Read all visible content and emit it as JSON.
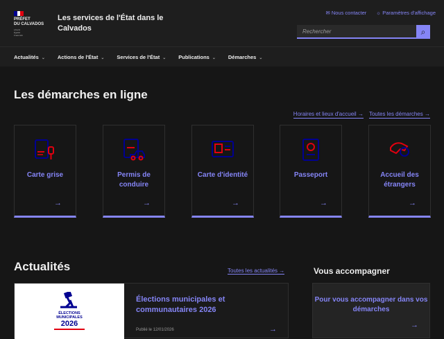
{
  "header": {
    "logo_lines": [
      "PRÉFET",
      "DU CALVADOS"
    ],
    "motto": [
      "Liberté",
      "Égalité",
      "Fraternité"
    ],
    "site_title": "Les services de l'État dans le Calvados",
    "contact": "Nous contacter",
    "display": "Paramètres d'affichage",
    "search_placeholder": "Rechercher"
  },
  "nav": [
    "Actualités",
    "Actions de l'État",
    "Services de l'État",
    "Publications",
    "Démarches"
  ],
  "demarches": {
    "title": "Les démarches en ligne",
    "links": [
      "Horaires et lieux d'accueil",
      "Toutes les démarches"
    ],
    "cards": [
      {
        "label": "Carte grise",
        "icon": "car-key-icon"
      },
      {
        "label": "Permis de conduire",
        "icon": "driving-license-icon"
      },
      {
        "label": "Carte d'identité",
        "icon": "id-card-icon"
      },
      {
        "label": "Passeport",
        "icon": "passport-icon"
      },
      {
        "label": "Accueil des étrangers",
        "icon": "foreigners-icon"
      }
    ]
  },
  "actualites": {
    "title": "Actualités",
    "all_link": "Toutes les actualités",
    "news": {
      "image_text": [
        "ÉLECTIONS",
        "MUNICIPALES",
        "2026"
      ],
      "title": "Élections municipales et communautaires 2026",
      "date": "Publié le 12/01/2026"
    }
  },
  "accompagner": {
    "title": "Vous accompagner",
    "card": "Pour vous accompagner dans vos démarches"
  },
  "colors": {
    "accent": "#8585f6",
    "background": "#161616",
    "icon_blue": "#000091",
    "icon_red": "#e1000f"
  }
}
